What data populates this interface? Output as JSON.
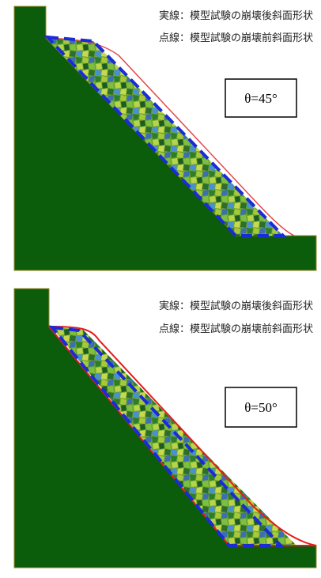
{
  "panels": [
    {
      "legend_solid": "実線：模型試験の崩壊後斜面形状",
      "legend_dotted": "点線：模型試験の崩壊前斜面形状",
      "angle_label": "θ=45°"
    },
    {
      "legend_solid": "実線：模型試験の崩壊後斜面形状",
      "legend_dotted": "点線：模型試験の崩壊前斜面形状",
      "angle_label": "θ=50°"
    }
  ]
}
